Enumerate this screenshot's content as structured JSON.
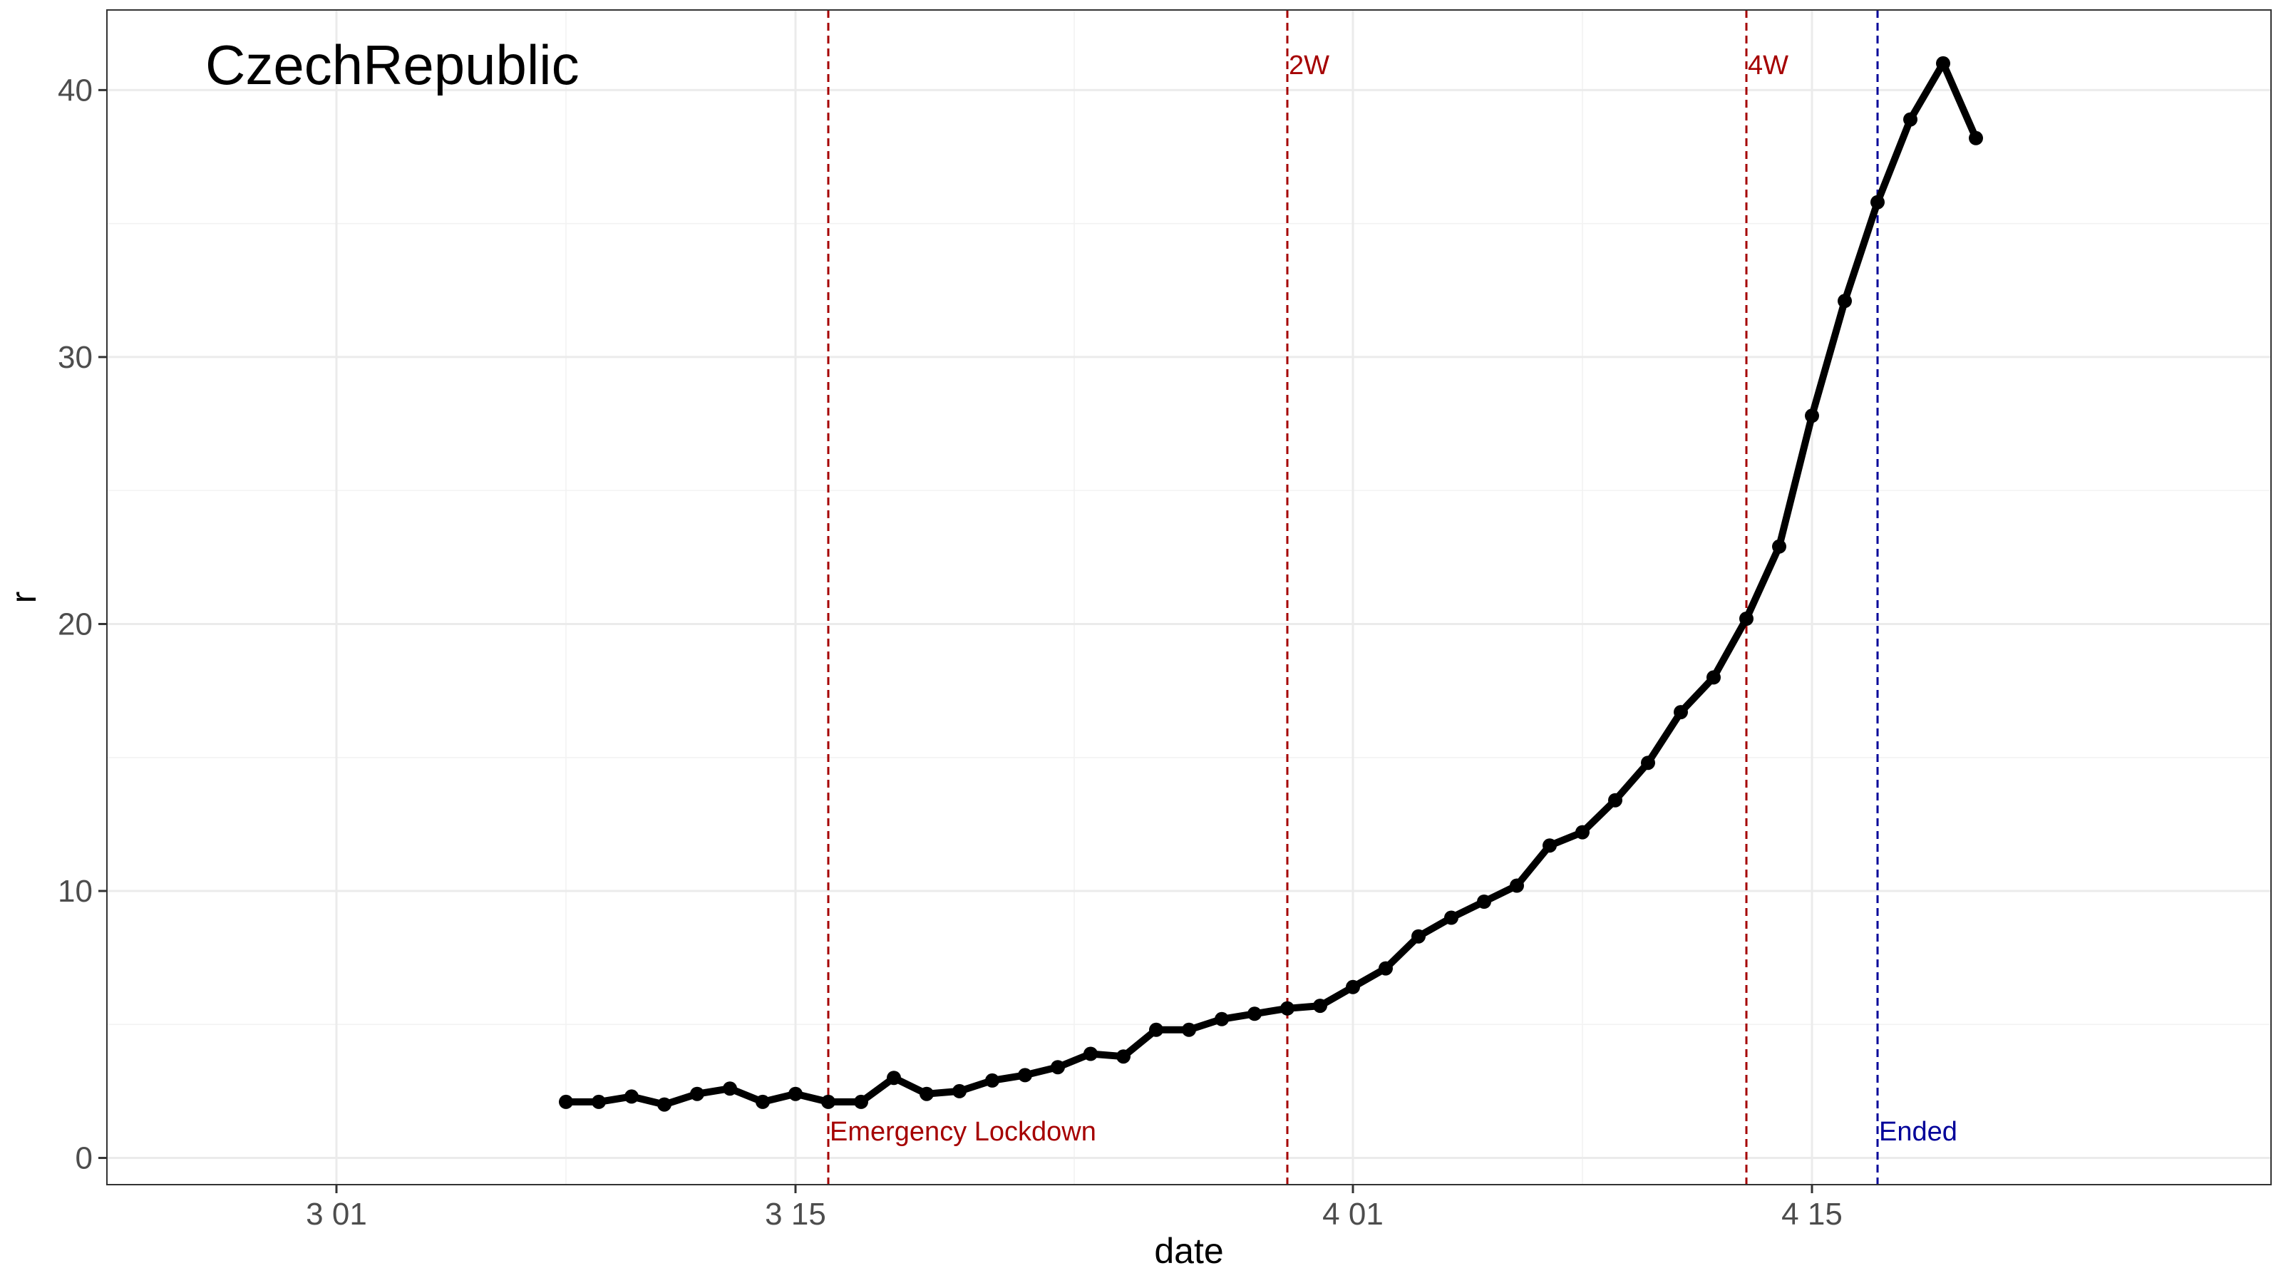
{
  "chart_data": {
    "type": "line",
    "title": "CzechRepublic",
    "xlabel": "date",
    "ylabel": "r",
    "x_ticks": [
      "3 01",
      "3 15",
      "4 01",
      "4 15"
    ],
    "y_ticks": [
      "0",
      "10",
      "20",
      "30",
      "40"
    ],
    "ylim": [
      -1,
      43
    ],
    "xlim": [
      "2020-02-23",
      "2020-04-29"
    ],
    "grid": true,
    "x": [
      "2020-03-08",
      "2020-03-09",
      "2020-03-10",
      "2020-03-11",
      "2020-03-12",
      "2020-03-13",
      "2020-03-14",
      "2020-03-15",
      "2020-03-16",
      "2020-03-17",
      "2020-03-18",
      "2020-03-19",
      "2020-03-20",
      "2020-03-21",
      "2020-03-22",
      "2020-03-23",
      "2020-03-24",
      "2020-03-25",
      "2020-03-26",
      "2020-03-27",
      "2020-03-28",
      "2020-03-29",
      "2020-03-30",
      "2020-03-31",
      "2020-04-01",
      "2020-04-02",
      "2020-04-03",
      "2020-04-04",
      "2020-04-05",
      "2020-04-06",
      "2020-04-07",
      "2020-04-08",
      "2020-04-09",
      "2020-04-10",
      "2020-04-11",
      "2020-04-12",
      "2020-04-13",
      "2020-04-14",
      "2020-04-15",
      "2020-04-16",
      "2020-04-17",
      "2020-04-18",
      "2020-04-19",
      "2020-04-20"
    ],
    "values": [
      2.1,
      2.1,
      2.3,
      2.0,
      2.4,
      2.6,
      2.1,
      2.4,
      2.1,
      2.1,
      3.0,
      2.4,
      2.5,
      2.9,
      3.1,
      3.4,
      3.9,
      3.8,
      4.8,
      4.8,
      5.2,
      5.4,
      5.6,
      5.7,
      6.4,
      7.1,
      8.3,
      9.0,
      9.6,
      10.2,
      11.7,
      12.2,
      13.4,
      14.8,
      16.7,
      18.0,
      20.2,
      22.9,
      27.8,
      32.1,
      35.8,
      38.9,
      41.0,
      38.2
    ],
    "series_color": "#000000",
    "vlines": [
      {
        "date": "2020-03-16",
        "label": "Emergency Lockdown",
        "color": "#a50000",
        "label_pos": "bottom"
      },
      {
        "date": "2020-03-30",
        "label": "2W",
        "color": "#a50000",
        "label_pos": "top"
      },
      {
        "date": "2020-04-13",
        "label": "4W",
        "color": "#a50000",
        "label_pos": "top"
      },
      {
        "date": "2020-04-17",
        "label": "Ended",
        "color": "#000099",
        "label_pos": "bottom"
      }
    ]
  }
}
